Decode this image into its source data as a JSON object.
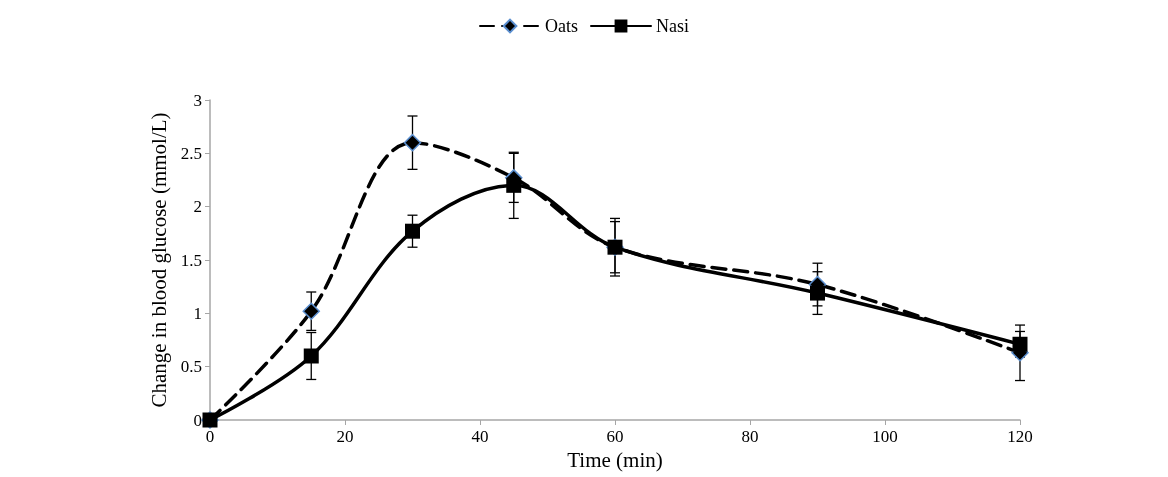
{
  "chart_data": {
    "type": "line",
    "xlabel": "Time (min)",
    "ylabel": "Change in blood glucose (mmol/L)",
    "x": [
      0,
      15,
      30,
      45,
      60,
      90,
      120
    ],
    "series": [
      {
        "name": "Oats",
        "color": "#000000",
        "marker": "diamond",
        "line_style": "dashed",
        "values": [
          0,
          1.02,
          2.6,
          2.27,
          1.62,
          1.27,
          0.63
        ],
        "errors": [
          null,
          0.18,
          0.25,
          0.23,
          0.27,
          0.2,
          0.26
        ]
      },
      {
        "name": "Nasi",
        "color": "#000000",
        "marker": "square",
        "line_style": "solid",
        "values": [
          0,
          0.6,
          1.77,
          2.2,
          1.62,
          1.19,
          0.71
        ],
        "errors": [
          null,
          0.22,
          0.15,
          0.31,
          0.24,
          0.2,
          0.12
        ]
      }
    ],
    "xlim": [
      0,
      120
    ],
    "xticks": [
      0,
      20,
      40,
      60,
      80,
      100,
      120
    ],
    "ylim": [
      0,
      3
    ],
    "yticks": [
      0,
      0.5,
      1,
      1.5,
      2,
      2.5,
      3
    ],
    "grid": false,
    "legend": "top"
  }
}
